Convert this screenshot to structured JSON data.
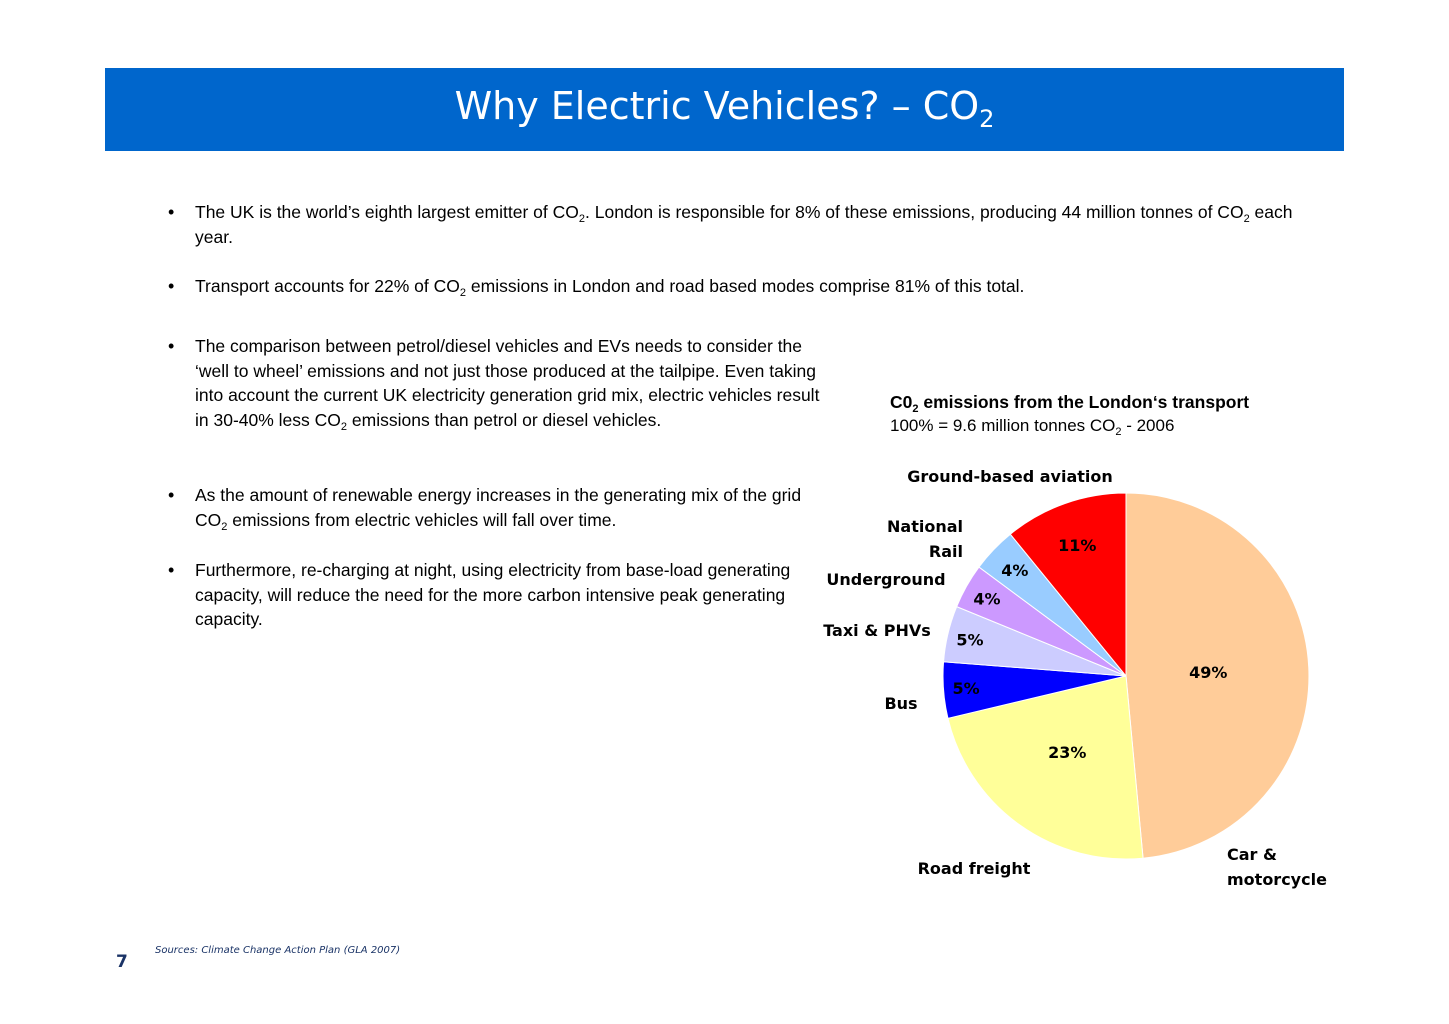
{
  "header": {
    "title": "Why Electric Vehicles? – CO",
    "title_sub": "2"
  },
  "bullets": [
    {
      "marker": "•",
      "parts": [
        "The UK is the world’s eighth largest emitter of CO",
        "2",
        ". London is responsible for 8% of these emissions, producing 44 million tonnes of CO",
        "2",
        " each year."
      ]
    },
    {
      "marker": "•",
      "parts": [
        "Transport accounts for 22% of CO",
        "2",
        " emissions in London and road based modes comprise 81% of this total."
      ]
    },
    {
      "marker": "•",
      "parts": [
        "The comparison between petrol/diesel vehicles and EVs needs to consider the ‘well to wheel’ emissions and not just those produced at the tailpipe.  Even taking into account the current UK electricity generation grid mix, electric vehicles result in 30-40% less CO",
        "2",
        " emissions than petrol or diesel vehicles."
      ]
    },
    {
      "marker": "•",
      "parts": [
        "As the amount of renewable energy increases in the generating mix of the grid CO",
        "2",
        " emissions from electric vehicles will fall over time."
      ]
    },
    {
      "marker": "•",
      "parts": [
        "Furthermore, re-charging at night, using electricity from base-load generating capacity, will reduce the need for the more carbon intensive peak generating capacity."
      ]
    }
  ],
  "chart_data": {
    "type": "pie",
    "title": "C0",
    "title_sub": "2",
    "title_rest": " emissions from the London‘s transport",
    "subtitle": "100% = 9.6 million tonnes CO",
    "subtitle_sub": "2",
    "subtitle_rest": " - 2006",
    "slices": [
      {
        "label": "Car & motorcycle",
        "value": 49,
        "value_label": "49%",
        "color": "#ffcc99"
      },
      {
        "label": "Road freight",
        "value": 23,
        "value_label": "23%",
        "color": "#ffff99"
      },
      {
        "label": "Bus",
        "value": 5,
        "value_label": "5%",
        "color": "#0000ff"
      },
      {
        "label": "Taxi & PHVs",
        "value": 5,
        "value_label": "5%",
        "color": "#ccccff"
      },
      {
        "label": "Underground",
        "value": 4,
        "value_label": "4%",
        "color": "#cc99ff"
      },
      {
        "label": "National Rail",
        "value": 4,
        "value_label": "4%",
        "color": "#99ccff"
      },
      {
        "label": "Ground-based aviation",
        "value": 11,
        "value_label": "11%",
        "color": "#ff0000"
      }
    ]
  },
  "footer": {
    "source": "Sources: Climate Change Action Plan (GLA 2007)",
    "page_number": "7"
  }
}
